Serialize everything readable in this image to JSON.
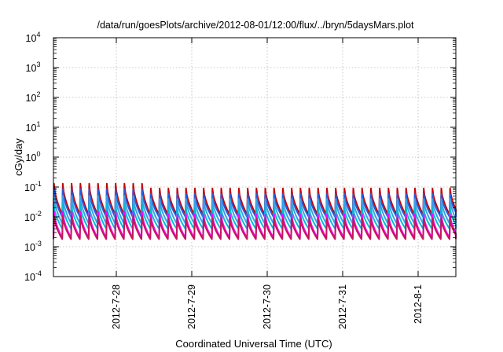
{
  "chart_data": {
    "type": "line",
    "title": "/data/run/goesPlots/archive/2012-08-01/12:00/flux/../bryn/5daysMars.plot",
    "xlabel": "Coordinated Universal Time (UTC)",
    "ylabel": "cGy/day",
    "x_start": "2012-07-27T04:00",
    "x_end": "2012-08-01T12:00",
    "x_ticks": [
      "2012-7-28",
      "2012-7-29",
      "2012-7-30",
      "2012-7-31",
      "2012-8-1"
    ],
    "y_scale": "log",
    "ylim": [
      0.0001,
      10000
    ],
    "y_ticks": [
      {
        "base": "10",
        "exp": "-4"
      },
      {
        "base": "10",
        "exp": "-3"
      },
      {
        "base": "10",
        "exp": "-2"
      },
      {
        "base": "10",
        "exp": "-1"
      },
      {
        "base": "10",
        "exp": "0"
      },
      {
        "base": "10",
        "exp": "1"
      },
      {
        "base": "10",
        "exp": "2"
      },
      {
        "base": "10",
        "exp": "3"
      },
      {
        "base": "10",
        "exp": "4"
      }
    ],
    "grid": true,
    "cycle_hours": 2.8,
    "series": [
      {
        "color": "#cc0000",
        "peak": 0.09,
        "peak_early": 0.13,
        "trough": 0.012
      },
      {
        "color": "#2a5bd7",
        "peak": 0.06,
        "peak_early": 0.085,
        "trough": 0.01
      },
      {
        "color": "#3aa0e8",
        "peak": 0.04,
        "peak_early": 0.05,
        "trough": 0.006
      },
      {
        "color": "#00bcd4",
        "peak": 0.02,
        "peak_early": 0.025,
        "trough": 0.004
      },
      {
        "color": "#ff00ff",
        "peak": 0.012,
        "peak_early": 0.015,
        "trough": 0.002
      },
      {
        "color": "#c2185b",
        "peak": 0.009,
        "peak_early": 0.011,
        "trough": 0.0018
      }
    ]
  }
}
